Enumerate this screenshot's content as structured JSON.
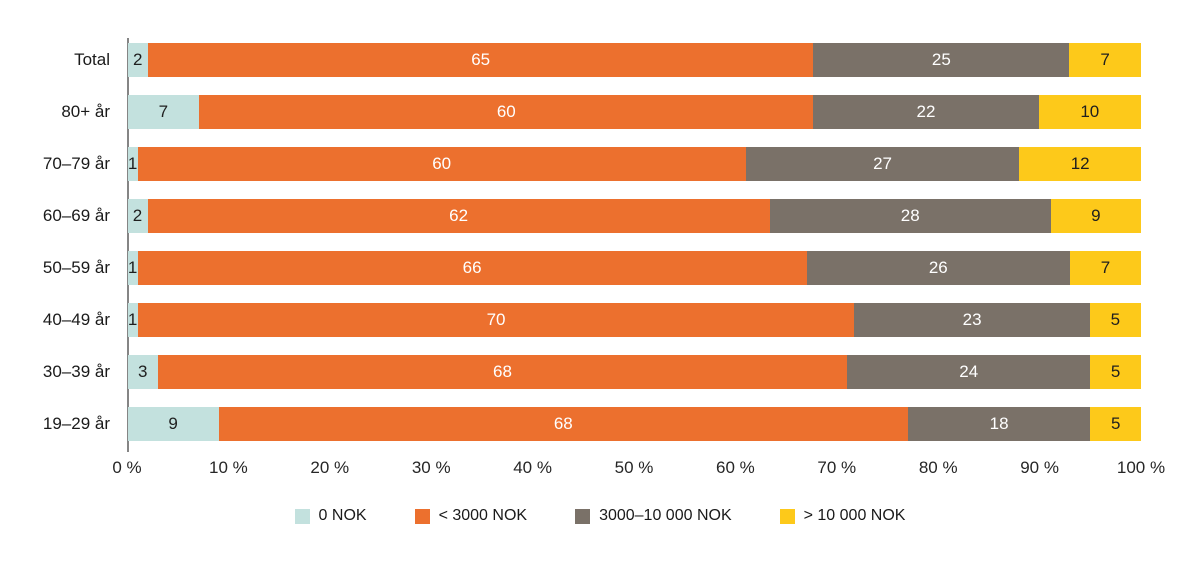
{
  "chart_data": {
    "type": "bar",
    "stacked": true,
    "orientation": "horizontal",
    "unit": "%",
    "categories": [
      "Total",
      "80+ år",
      "70–79 år",
      "60–69 år",
      "50–59 år",
      "40–49 år",
      "30–39 år",
      "19–29 år"
    ],
    "series": [
      {
        "name": "0 NOK",
        "key": "0-nok",
        "color": "#c3e1de",
        "label_color": "#1f1f1f",
        "values": [
          2,
          7,
          1,
          2,
          1,
          1,
          3,
          9
        ]
      },
      {
        "name": "< 3000 NOK",
        "key": "lt-3000-nok",
        "color": "#ec702e",
        "label_color": "#ffffff",
        "values": [
          65,
          60,
          60,
          62,
          66,
          70,
          68,
          68
        ]
      },
      {
        "name": "3000–10 000 NOK",
        "key": "3000-10000-nok",
        "color": "#7a7168",
        "label_color": "#ffffff",
        "values": [
          25,
          22,
          27,
          28,
          26,
          23,
          24,
          18
        ]
      },
      {
        "name": "> 10 000 NOK",
        "key": "gt-10000-nok",
        "color": "#fdc91a",
        "label_color": "#1f1f1f",
        "values": [
          7,
          10,
          12,
          9,
          7,
          5,
          5,
          5
        ]
      }
    ],
    "x_ticks": [
      "0 %",
      "10 %",
      "20 %",
      "30 %",
      "40 %",
      "50 %",
      "60 %",
      "70 %",
      "80 %",
      "90 %",
      "100 %"
    ],
    "xlim": [
      0,
      100
    ],
    "title": "",
    "xlabel": "",
    "ylabel": "",
    "grid": false,
    "legend_position": "bottom"
  },
  "colors": {
    "axis_line": "#858585",
    "tick_text": "#262626",
    "category_text": "#1a1a1a",
    "background": "#ffffff"
  }
}
